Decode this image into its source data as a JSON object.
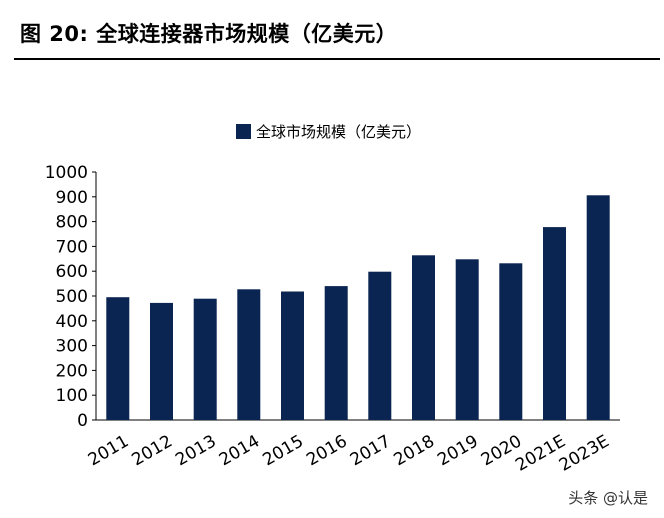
{
  "figure": {
    "title": "图 20:  全球连接器市场规模（亿美元）"
  },
  "watermark": "头条 @认是",
  "chart_data": {
    "type": "bar",
    "title": "",
    "categories": [
      "2011",
      "2012",
      "2013",
      "2014",
      "2015",
      "2016",
      "2017",
      "2018",
      "2019",
      "2020",
      "2021E",
      "2023E"
    ],
    "series": [
      {
        "name": "全球市场规模（亿美元）",
        "values": [
          495,
          472,
          489,
          527,
          518,
          540,
          598,
          664,
          648,
          632,
          778,
          906
        ]
      }
    ],
    "xlabel": "",
    "ylabel": "",
    "ylim": [
      0,
      1000
    ],
    "yticks": [
      0,
      100,
      200,
      300,
      400,
      500,
      600,
      700,
      800,
      900,
      1000
    ],
    "grid": false,
    "legend_position": "top-center",
    "bar_color": "#0b2552"
  }
}
